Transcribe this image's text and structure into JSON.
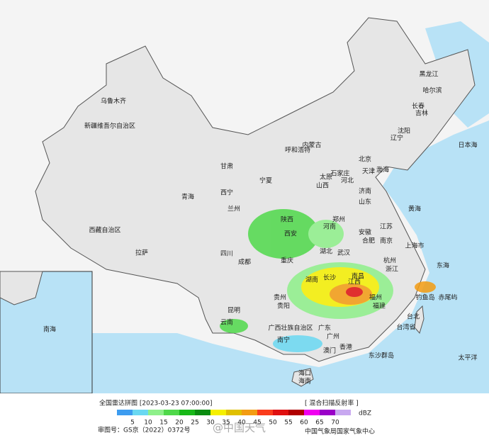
{
  "map": {
    "places": [
      "黑龙江",
      "哈尔滨",
      "吉林",
      "长春",
      "辽宁",
      "沈阳",
      "内蒙古",
      "呼和浩特",
      "新疆维吾尔自治区",
      "乌鲁木齐",
      "西藏自治区",
      "拉萨",
      "青海",
      "西宁",
      "甘肃",
      "兰州",
      "宁夏",
      "陕西",
      "西安",
      "山西",
      "太原",
      "河北",
      "石家庄",
      "北京",
      "天津",
      "山东",
      "济南",
      "河南",
      "郑州",
      "江苏",
      "南京",
      "上海市",
      "安徽",
      "合肥",
      "湖北",
      "武汉",
      "浙江",
      "杭州",
      "四川",
      "成都",
      "重庆",
      "贵州",
      "贵阳",
      "云南",
      "昆明",
      "湖南",
      "长沙",
      "江西",
      "南昌",
      "福建",
      "福州",
      "广东",
      "广州",
      "广西壮族自治区",
      "南宁",
      "海南",
      "海口",
      "台湾省",
      "台北",
      "香港",
      "澳门",
      "东沙群岛",
      "日本海",
      "黄海",
      "东海",
      "太平洋",
      "钓鱼岛",
      "赤尾屿",
      "南海",
      "渤海"
    ]
  },
  "legend": {
    "title": "全国雷达拼图 [2023-03-23 07:00:00]",
    "product": "[ 混合扫描反射率 ]",
    "unit": "dBZ",
    "levels": [
      5,
      10,
      15,
      20,
      25,
      30,
      35,
      40,
      45,
      50,
      55,
      60,
      65,
      70
    ],
    "colors": [
      "#3d9cf0",
      "#6ad8f2",
      "#8ef08a",
      "#4fd84a",
      "#18b818",
      "#0a8c10",
      "#f6f000",
      "#e0c000",
      "#f39c12",
      "#fa3c1c",
      "#e01010",
      "#b00000",
      "#f000f0",
      "#9a00c8",
      "#c8a8f0"
    ]
  },
  "footer": {
    "approval": "审图号：GS京（2022）0372号",
    "watermark": "@中国天气",
    "source": "中国气象局国家气象中心"
  }
}
